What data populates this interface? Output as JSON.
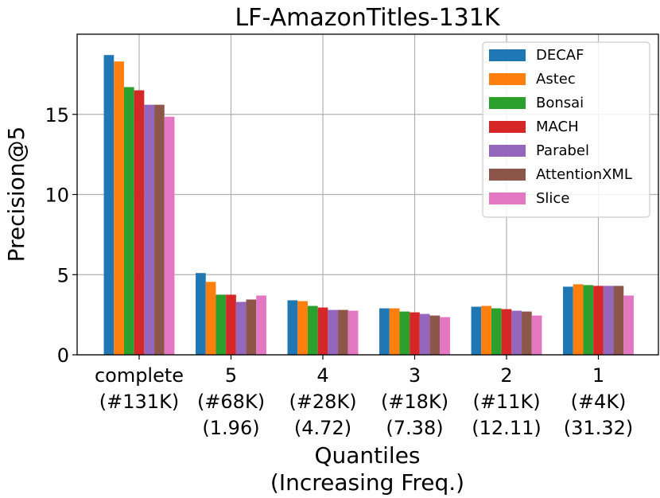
{
  "chart_data": {
    "type": "bar",
    "title": "LF-AmazonTitles-131K",
    "xlabel_lines": [
      "Quantiles",
      "(Increasing Freq.)"
    ],
    "ylabel": "Precision@5",
    "ylim": [
      0,
      20
    ],
    "yticks": [
      0,
      5,
      10,
      15
    ],
    "grid": true,
    "legend_position": "top-right",
    "categories": [
      [
        "complete",
        "(#131K)"
      ],
      [
        "5",
        "(#68K)",
        "(1.96)"
      ],
      [
        "4",
        "(#28K)",
        "(4.72)"
      ],
      [
        "3",
        "(#18K)",
        "(7.38)"
      ],
      [
        "2",
        "(#11K)",
        "(12.11)"
      ],
      [
        "1",
        "(#4K)",
        "(31.32)"
      ]
    ],
    "series": [
      {
        "name": "DECAF",
        "color": "#1f77b4",
        "values": [
          18.7,
          5.1,
          3.4,
          2.9,
          3.0,
          4.25
        ]
      },
      {
        "name": "Astec",
        "color": "#ff7f0e",
        "values": [
          18.3,
          4.55,
          3.35,
          2.9,
          3.05,
          4.4
        ]
      },
      {
        "name": "Bonsai",
        "color": "#2ca02c",
        "values": [
          16.7,
          3.75,
          3.05,
          2.7,
          2.9,
          4.35
        ]
      },
      {
        "name": "MACH",
        "color": "#d62728",
        "values": [
          16.5,
          3.75,
          2.95,
          2.65,
          2.85,
          4.3
        ]
      },
      {
        "name": "Parabel",
        "color": "#9467bd",
        "values": [
          15.6,
          3.3,
          2.8,
          2.55,
          2.75,
          4.3
        ]
      },
      {
        "name": "AttentionXML",
        "color": "#8c564b",
        "values": [
          15.6,
          3.45,
          2.8,
          2.45,
          2.7,
          4.3
        ]
      },
      {
        "name": "Slice",
        "color": "#e377c2",
        "values": [
          14.85,
          3.7,
          2.75,
          2.35,
          2.45,
          3.7
        ]
      }
    ]
  }
}
